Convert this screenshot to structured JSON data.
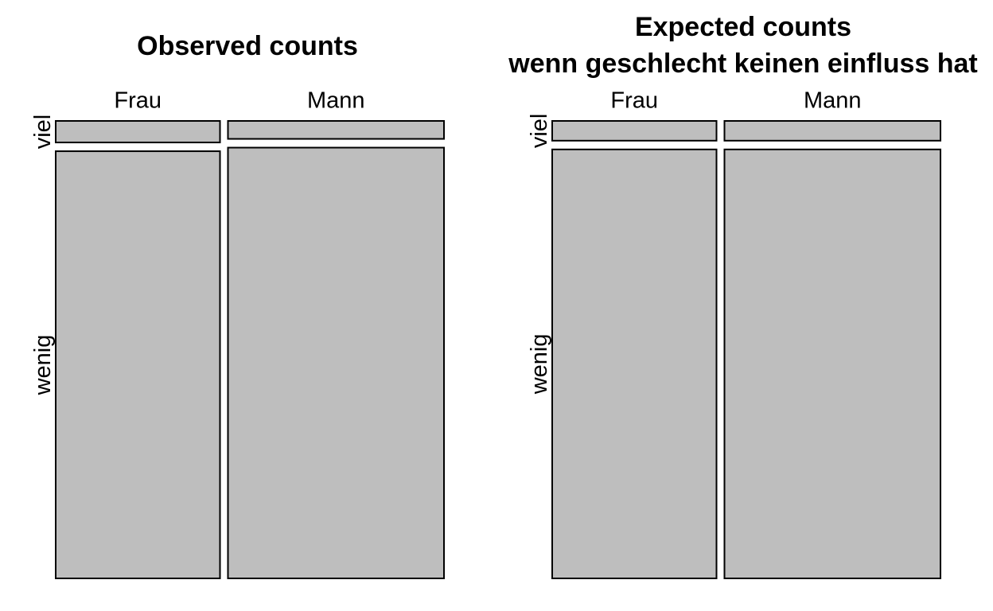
{
  "chart_data": [
    {
      "type": "mosaic",
      "title": "Observed counts",
      "subtitle": "",
      "columns": [
        "Frau",
        "Mann"
      ],
      "rows": [
        "viel",
        "wenig"
      ],
      "column_share": [
        0.432,
        0.568
      ],
      "row_share_within_column": [
        {
          "column": "Frau",
          "viel": 0.048,
          "wenig": 0.952
        },
        {
          "column": "Mann",
          "viel": 0.04,
          "wenig": 0.96
        }
      ],
      "fill_color": "#bebebe",
      "grid": false,
      "legend": "none"
    },
    {
      "type": "mosaic",
      "title": "Expected counts",
      "subtitle": "wenn geschlecht keinen einfluss hat",
      "columns": [
        "Frau",
        "Mann"
      ],
      "rows": [
        "viel",
        "wenig"
      ],
      "column_share": [
        0.432,
        0.568
      ],
      "row_share_within_column": [
        {
          "column": "Frau",
          "viel": 0.044,
          "wenig": 0.956
        },
        {
          "column": "Mann",
          "viel": 0.044,
          "wenig": 0.956
        }
      ],
      "fill_color": "#bebebe",
      "grid": false,
      "legend": "none"
    }
  ]
}
